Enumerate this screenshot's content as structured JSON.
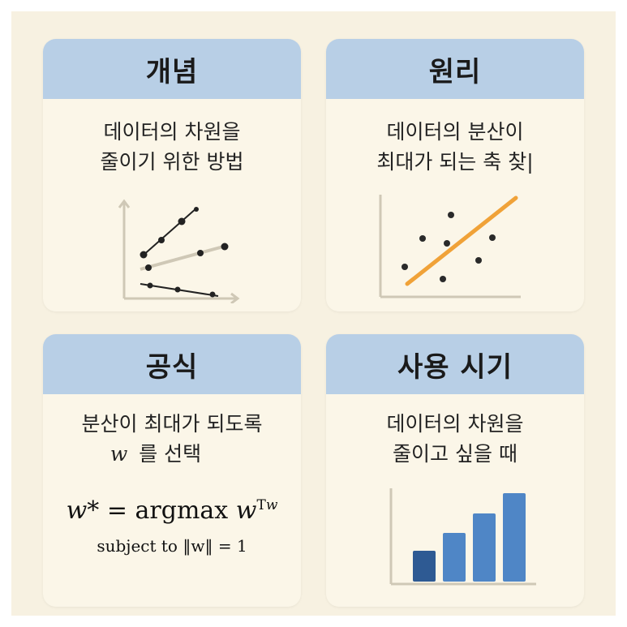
{
  "cards": [
    {
      "title": "개념",
      "lines": [
        "데이터의 차원을",
        "줄이기 위한 방법"
      ],
      "icon": "multi-line-scatter-chart-icon"
    },
    {
      "title": "원리",
      "lines": [
        "데이터의 분산이",
        "최대가 되는 축 찾|"
      ],
      "icon": "scatter-with-principal-axis-icon"
    },
    {
      "title": "공식",
      "lines": [
        "분산이 최대가 되도록",
        "를 선택"
      ],
      "variable": "w",
      "formula": {
        "lhs": "w*",
        "equals": "=",
        "operator": "argmax",
        "base": "w",
        "superscript": "T",
        "superscript_var": "w",
        "constraint_prefix": "subject to",
        "constraint_norm": "‖w‖",
        "constraint_rhs": "= 1"
      }
    },
    {
      "title": "사용 시기",
      "lines": [
        "데이터의 차원을",
        "줄이고 싶을 때"
      ],
      "icon": "bar-chart-icon"
    }
  ],
  "colors": {
    "background": "#f7f1e1",
    "card": "#fbf6e8",
    "header": "#b8cfe6",
    "axis": "#cfc8b6",
    "point": "#2a2a2a",
    "principal_axis": "#f0a238",
    "bar_dark": "#2e5a93",
    "bar_light": "#4f86c6"
  }
}
